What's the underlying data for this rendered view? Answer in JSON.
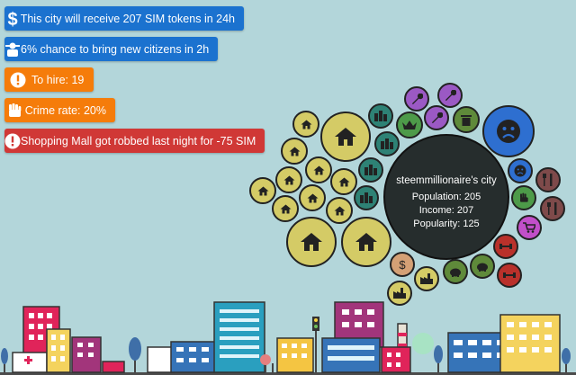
{
  "notifications": [
    {
      "icon": "dollar-icon",
      "text": "This city will receive 207 SIM tokens in 24h",
      "color": "#1b72cf"
    },
    {
      "icon": "citizens-icon",
      "text": "6% chance to bring new citizens in 2h",
      "color": "#1b72cf"
    },
    {
      "icon": "alert-icon",
      "text": "To hire: 19",
      "color": "#f57c0a"
    },
    {
      "icon": "fist-icon",
      "text": "Crime rate: 20%",
      "color": "#f57c0a"
    },
    {
      "icon": "alert-icon",
      "text": "Shopping Mall got robbed last night for -75 SIM",
      "color": "#d03836"
    }
  ],
  "city": {
    "name": "steemmillionaire's city",
    "population": "Population: 205",
    "income": "Income: 207",
    "popularity": "Popularity: 125"
  },
  "colors": {
    "sky": "#b3d6da",
    "house_bubble": "#d4cb66",
    "building_bubble": "#2e8275",
    "center": "#262d2d"
  }
}
